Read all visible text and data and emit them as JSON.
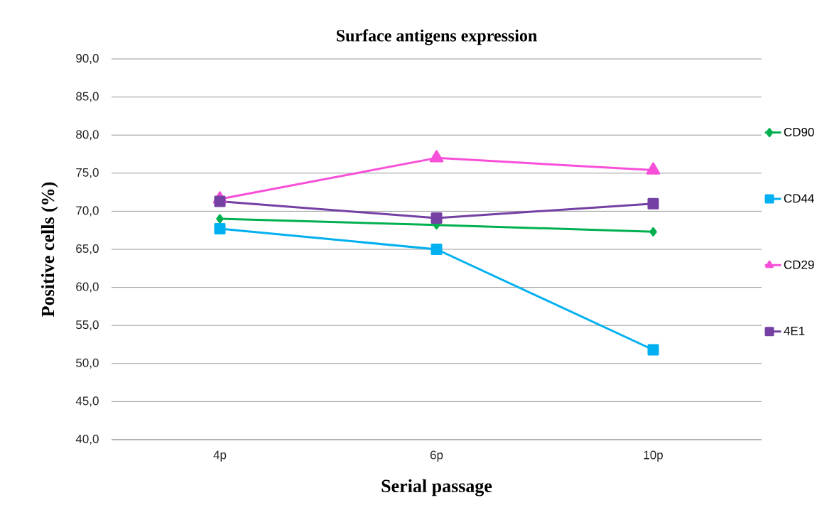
{
  "chart_data": {
    "type": "line",
    "title": "Surface antigens expression",
    "xlabel": "Serial passage",
    "ylabel": "Positive cells (%)",
    "categories": [
      "4p",
      "6p",
      "10p"
    ],
    "ylim": [
      40,
      90
    ],
    "yticks": [
      {
        "value": 40,
        "label": "40,0"
      },
      {
        "value": 45,
        "label": "45,0"
      },
      {
        "value": 50,
        "label": "50,0"
      },
      {
        "value": 55,
        "label": "55,0"
      },
      {
        "value": 60,
        "label": "60,0"
      },
      {
        "value": 65,
        "label": "65,0"
      },
      {
        "value": 70,
        "label": "70,0"
      },
      {
        "value": 75,
        "label": "75,0"
      },
      {
        "value": 80,
        "label": "80,0"
      },
      {
        "value": 85,
        "label": "85,0"
      },
      {
        "value": 90,
        "label": "90,0"
      }
    ],
    "grid": "y",
    "legend": "right",
    "line_style": "solid",
    "series": [
      {
        "name": "CD90",
        "color": "#00b050",
        "marker": "diamond",
        "values": [
          69.0,
          68.2,
          67.3
        ]
      },
      {
        "name": "CD44",
        "color": "#00b0f0",
        "marker": "square",
        "values": [
          67.7,
          65.0,
          51.8
        ]
      },
      {
        "name": "CD29",
        "color": "#f84fd8",
        "marker": "triangle",
        "values": [
          71.6,
          77.0,
          75.4
        ]
      },
      {
        "name": "4E1",
        "color": "#7440a4",
        "marker": "square",
        "values": [
          71.3,
          69.1,
          71.0
        ]
      }
    ]
  }
}
